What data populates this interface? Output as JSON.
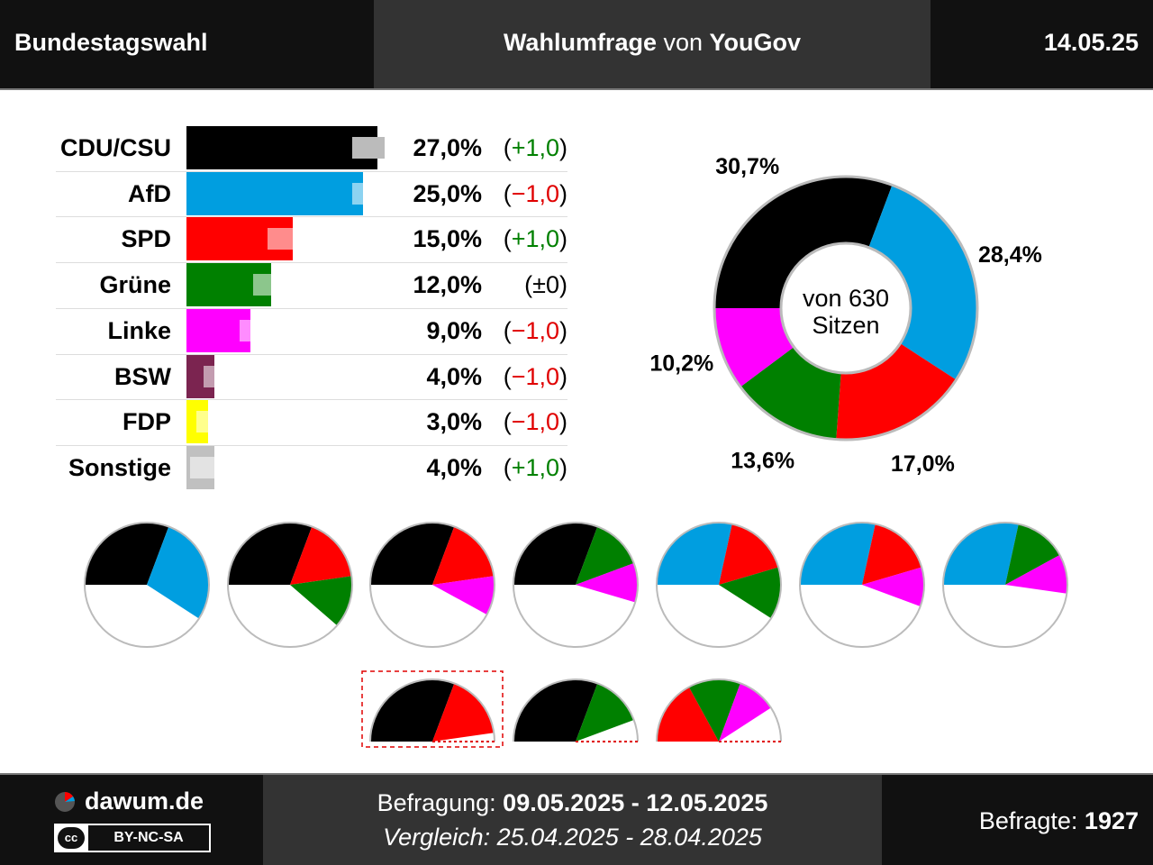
{
  "header": {
    "left": "Bundestagswahl",
    "mid_bold1": "Wahlumfrage",
    "mid_normal": " von ",
    "mid_bold2": "YouGov",
    "date": "14.05.25"
  },
  "colors": {
    "CDU/CSU": "#000000",
    "AfD": "#009ee0",
    "SPD": "#ff0000",
    "Grüne": "#008000",
    "Linke": "#ff00ff",
    "BSW": "#7b2450",
    "FDP": "#ffff00",
    "Sonstige": "#c0c0c0"
  },
  "chart_data": [
    {
      "type": "bar",
      "categories": [
        "CDU/CSU",
        "AfD",
        "SPD",
        "Grüne",
        "Linke",
        "BSW",
        "FDP",
        "Sonstige"
      ],
      "values": [
        27.0,
        25.0,
        15.0,
        12.0,
        9.0,
        4.0,
        3.0,
        4.0
      ],
      "value_labels": [
        "27,0%",
        "25,0%",
        "15,0%",
        "12,0%",
        "9,0%",
        "4,0%",
        "3,0%",
        "4,0%"
      ],
      "previous_values": [
        26.0,
        26.0,
        14.0,
        12.0,
        10.0,
        5.0,
        4.0,
        3.0
      ],
      "change_labels": [
        "+1,0",
        "−1,0",
        "+1,0",
        "±0",
        "−1,0",
        "−1,0",
        "−1,0",
        "+1,0"
      ],
      "change_signs": [
        "pos",
        "neg",
        "pos",
        "zero",
        "neg",
        "neg",
        "neg",
        "pos"
      ]
    },
    {
      "type": "pie",
      "center_label_line1": "von 630",
      "center_label_line2": "Sitzen",
      "slices": [
        {
          "party": "CDU/CSU",
          "value": 30.7,
          "label": "30,7%"
        },
        {
          "party": "AfD",
          "value": 28.4,
          "label": "28,4%"
        },
        {
          "party": "SPD",
          "value": 17.0,
          "label": "17,0%"
        },
        {
          "party": "Grüne",
          "value": 13.6,
          "label": "13,6%"
        },
        {
          "party": "Linke",
          "value": 10.2,
          "label": "10,2%"
        }
      ]
    },
    {
      "type": "pie",
      "description_note": "coalition half-circle charts",
      "coalitions": [
        {
          "parties": [
            "CDU/CSU",
            "AfD"
          ],
          "majority": true
        },
        {
          "parties": [
            "CDU/CSU",
            "SPD",
            "Grüne"
          ],
          "majority": true
        },
        {
          "parties": [
            "CDU/CSU",
            "SPD",
            "Linke"
          ],
          "majority": true
        },
        {
          "parties": [
            "CDU/CSU",
            "Grüne",
            "Linke"
          ],
          "majority": true
        },
        {
          "parties": [
            "AfD",
            "SPD",
            "Grüne"
          ],
          "majority": true
        },
        {
          "parties": [
            "AfD",
            "SPD",
            "Linke"
          ],
          "majority": true
        },
        {
          "parties": [
            "AfD",
            "Grüne",
            "Linke"
          ],
          "majority": true
        },
        {
          "parties": [
            "CDU/CSU",
            "SPD"
          ],
          "majority": false,
          "highlight": true
        },
        {
          "parties": [
            "CDU/CSU",
            "Grüne"
          ],
          "majority": false
        },
        {
          "parties": [
            "SPD",
            "Grüne",
            "Linke"
          ],
          "majority": false
        }
      ]
    }
  ],
  "footer": {
    "brand": "dawum.de",
    "license_cc": "cc",
    "license": "BY-NC-SA",
    "survey_label": "Befragung: ",
    "survey_dates": "09.05.2025 - 12.05.2025",
    "compare_label": "Vergleich: ",
    "compare_dates": "25.04.2025 - 28.04.2025",
    "respondents_label": "Befragte: ",
    "respondents": "1927"
  }
}
